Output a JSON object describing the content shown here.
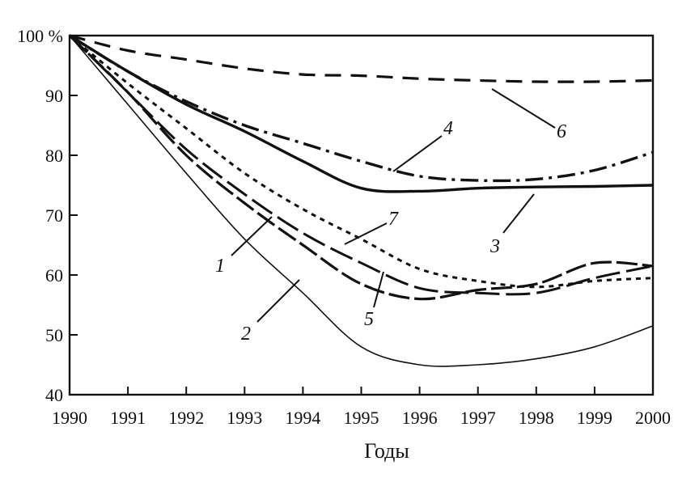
{
  "chart_data": {
    "type": "line",
    "xlabel": "Годы",
    "ylabel": "",
    "xlim": [
      1990,
      2000
    ],
    "ylim": [
      40,
      100
    ],
    "x_ticks": [
      "1990",
      "1991",
      "1992",
      "1993",
      "1994",
      "1995",
      "1996",
      "1997",
      "1998",
      "1999",
      "2000"
    ],
    "y_ticks": [
      {
        "value": 100,
        "label": "100 %"
      },
      {
        "value": 90,
        "label": "90"
      },
      {
        "value": 80,
        "label": "80"
      },
      {
        "value": 70,
        "label": "70"
      },
      {
        "value": 60,
        "label": "60"
      },
      {
        "value": 50,
        "label": "50"
      },
      {
        "value": 40,
        "label": "40"
      }
    ],
    "series": [
      {
        "name": "1",
        "style": "long-dash-heavy",
        "x": [
          1990,
          1991,
          1992,
          1993,
          1994,
          1995,
          1996,
          1997,
          1998,
          1999,
          2000
        ],
        "y": [
          100,
          90.5,
          80,
          72,
          65,
          58.5,
          56,
          57.5,
          58.5,
          62,
          61.5
        ]
      },
      {
        "name": "2",
        "style": "thin-solid",
        "x": [
          1990,
          1991,
          1992,
          1993,
          1994,
          1995,
          1996,
          1997,
          1998,
          1999,
          2000
        ],
        "y": [
          100,
          88.5,
          77,
          66,
          57,
          48,
          45,
          45,
          46,
          48,
          51.5
        ]
      },
      {
        "name": "3",
        "style": "thick-solid",
        "x": [
          1990,
          1991,
          1992,
          1993,
          1994,
          1995,
          1996,
          1997,
          1998,
          1999,
          2000
        ],
        "y": [
          100,
          94,
          88.5,
          84,
          79,
          74.5,
          74,
          74.5,
          74.7,
          74.8,
          75
        ]
      },
      {
        "name": "4",
        "style": "dash-dot",
        "x": [
          1990,
          1991,
          1992,
          1993,
          1994,
          1995,
          1996,
          1997,
          1998,
          1999,
          2000
        ],
        "y": [
          100,
          94,
          89,
          85,
          82,
          79,
          76.5,
          75.8,
          76,
          77.5,
          80.5
        ]
      },
      {
        "name": "5",
        "style": "long-dash",
        "x": [
          1990,
          1991,
          1992,
          1993,
          1994,
          1995,
          1996,
          1997,
          1998,
          1999,
          2000
        ],
        "y": [
          100,
          90.5,
          81,
          73.5,
          67,
          62,
          57.8,
          57,
          57,
          59.5,
          61.5
        ]
      },
      {
        "name": "6",
        "style": "dashed",
        "x": [
          1990,
          1991,
          1992,
          1993,
          1994,
          1995,
          1996,
          1997,
          1998,
          1999,
          2000
        ],
        "y": [
          100,
          97.5,
          96,
          94.5,
          93.5,
          93.3,
          92.8,
          92.5,
          92.3,
          92.3,
          92.5
        ]
      },
      {
        "name": "7",
        "style": "dotted",
        "x": [
          1990,
          1991,
          1992,
          1993,
          1994,
          1995,
          1996,
          1997,
          1998,
          1999,
          2000
        ],
        "y": [
          100,
          92,
          84.5,
          77,
          71,
          66,
          61,
          59,
          58,
          59,
          59.5
        ]
      }
    ],
    "grid": false,
    "legend": "none"
  }
}
